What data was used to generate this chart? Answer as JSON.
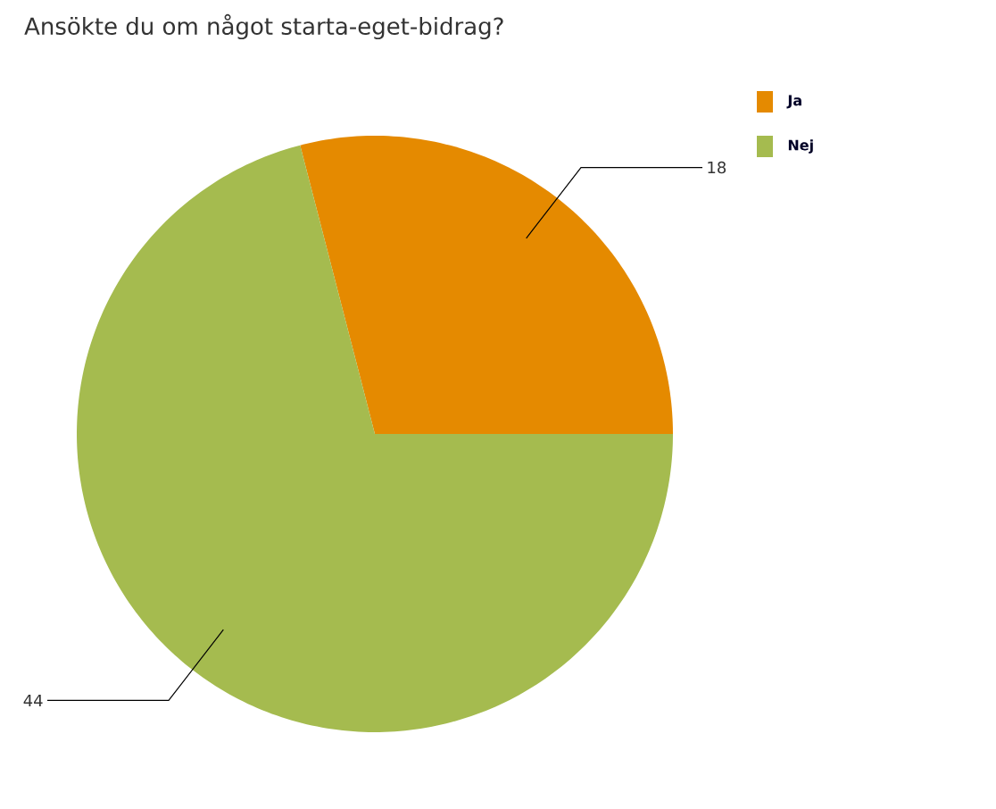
{
  "chart_data": {
    "type": "pie",
    "title": "Ansökte du om något starta-eget-bidrag?",
    "categories": [
      "Ja",
      "Nej"
    ],
    "values": [
      18,
      44
    ],
    "colors": [
      "#e58a00",
      "#a5bb4f"
    ],
    "data_labels": true,
    "legend": "top right"
  }
}
